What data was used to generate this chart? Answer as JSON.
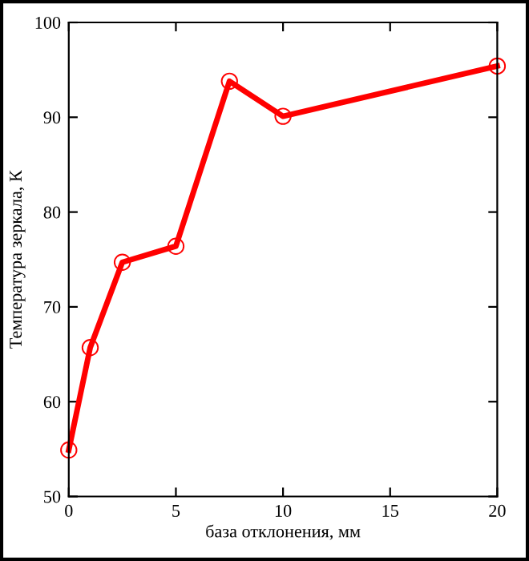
{
  "chart_data": {
    "type": "line",
    "xlabel": "база отклонения, мм",
    "ylabel": "Температура зеркала, К",
    "x": [
      0,
      1,
      2.5,
      5,
      7.5,
      10,
      20
    ],
    "series": [
      {
        "color": "#ff0000",
        "values": [
          54.9,
          65.7,
          74.7,
          76.4,
          93.8,
          90.1,
          95.4
        ]
      }
    ],
    "xlim": [
      0,
      20
    ],
    "ylim": [
      50,
      100
    ],
    "xticks": [
      0,
      5,
      10,
      15,
      20
    ],
    "yticks": [
      50,
      60,
      70,
      80,
      90,
      100
    ],
    "marker": "circle",
    "line_style": "solid",
    "grid": false
  }
}
